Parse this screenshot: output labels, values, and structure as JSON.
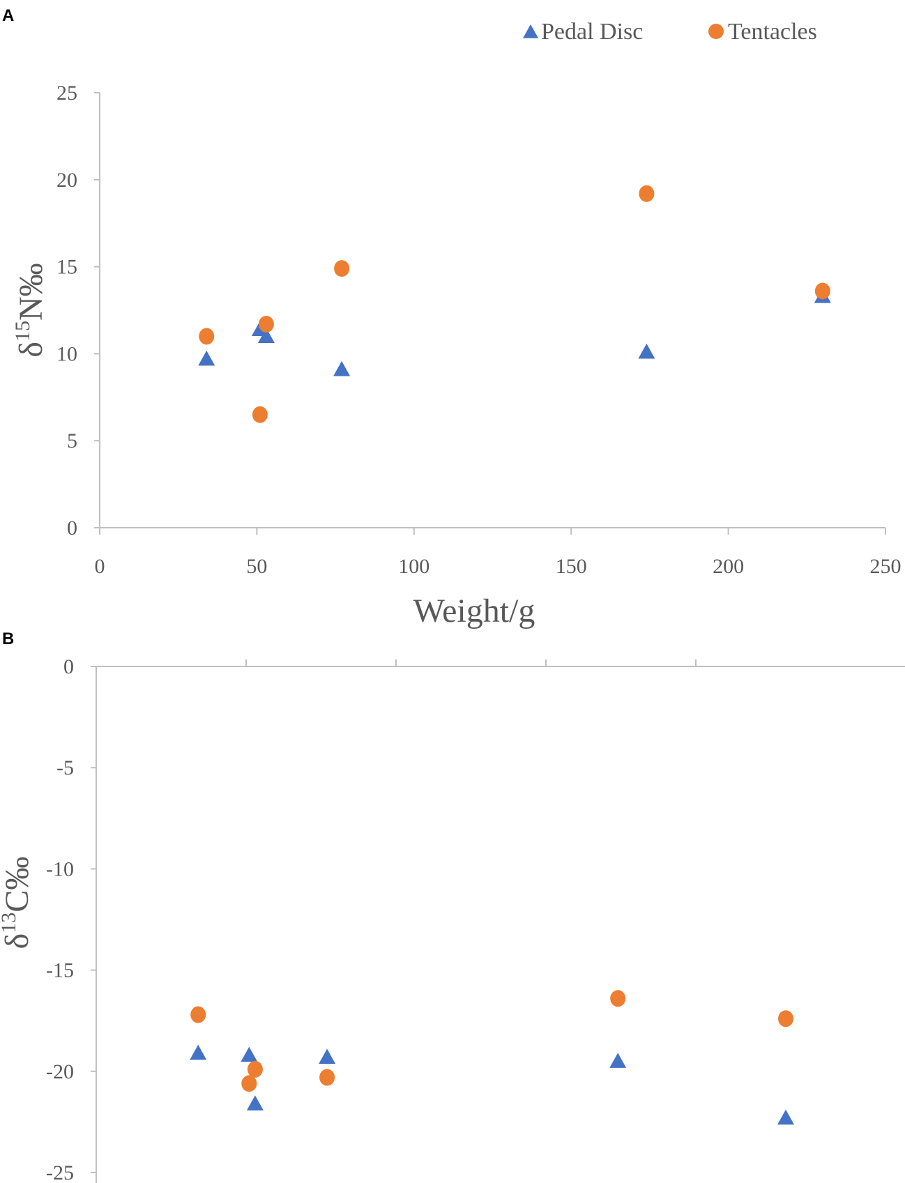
{
  "legend": {
    "items": [
      {
        "label": "Pedal Disc",
        "marker": "triangle",
        "color": "#4472c4"
      },
      {
        "label": "Tentacles",
        "marker": "circle",
        "color": "#ed7d31"
      }
    ]
  },
  "panels": [
    {
      "label": "A"
    },
    {
      "label": "B"
    }
  ],
  "chart_data": [
    {
      "type": "scatter",
      "panel": "A",
      "title": "",
      "xlabel": "Weight/g",
      "ylabel": "δ15N‰",
      "xlim": [
        0,
        250
      ],
      "ylim": [
        0,
        25
      ],
      "xticks": [
        "0",
        "50",
        "100",
        "150",
        "200",
        "250"
      ],
      "yticks": [
        "0",
        "5",
        "10",
        "15",
        "20",
        "25"
      ],
      "grid": false,
      "legend_position": "top-right",
      "series": [
        {
          "name": "Pedal Disc",
          "marker": "triangle",
          "color": "#4472c4",
          "points": [
            [
              34,
              9.7
            ],
            [
              51,
              11.4
            ],
            [
              53,
              11.0
            ],
            [
              77,
              9.1
            ],
            [
              174,
              10.1
            ],
            [
              230,
              13.3
            ]
          ]
        },
        {
          "name": "Tentacles",
          "marker": "circle",
          "color": "#ed7d31",
          "points": [
            [
              34,
              11.0
            ],
            [
              51,
              6.5
            ],
            [
              53,
              11.7
            ],
            [
              77,
              14.9
            ],
            [
              174,
              19.2
            ],
            [
              230,
              13.6
            ]
          ]
        }
      ]
    },
    {
      "type": "scatter",
      "panel": "B",
      "title": "",
      "xlabel": "",
      "ylabel": "δ13C‰",
      "xlim": [
        0,
        250
      ],
      "ylim": [
        -25,
        0
      ],
      "yticks": [
        "0",
        "-5",
        "-10",
        "-15",
        "-20",
        "-25"
      ],
      "grid": false,
      "series": [
        {
          "name": "Pedal Disc",
          "marker": "triangle",
          "color": "#4472c4",
          "points": [
            [
              34,
              -19.1
            ],
            [
              51,
              -19.2
            ],
            [
              53,
              -21.6
            ],
            [
              77,
              -19.3
            ],
            [
              174,
              -19.5
            ],
            [
              230,
              -22.3
            ]
          ]
        },
        {
          "name": "Tentacles",
          "marker": "circle",
          "color": "#ed7d31",
          "points": [
            [
              34,
              -17.2
            ],
            [
              51,
              -20.6
            ],
            [
              53,
              -19.9
            ],
            [
              77,
              -20.3
            ],
            [
              174,
              -16.4
            ],
            [
              230,
              -17.4
            ]
          ]
        }
      ]
    }
  ]
}
